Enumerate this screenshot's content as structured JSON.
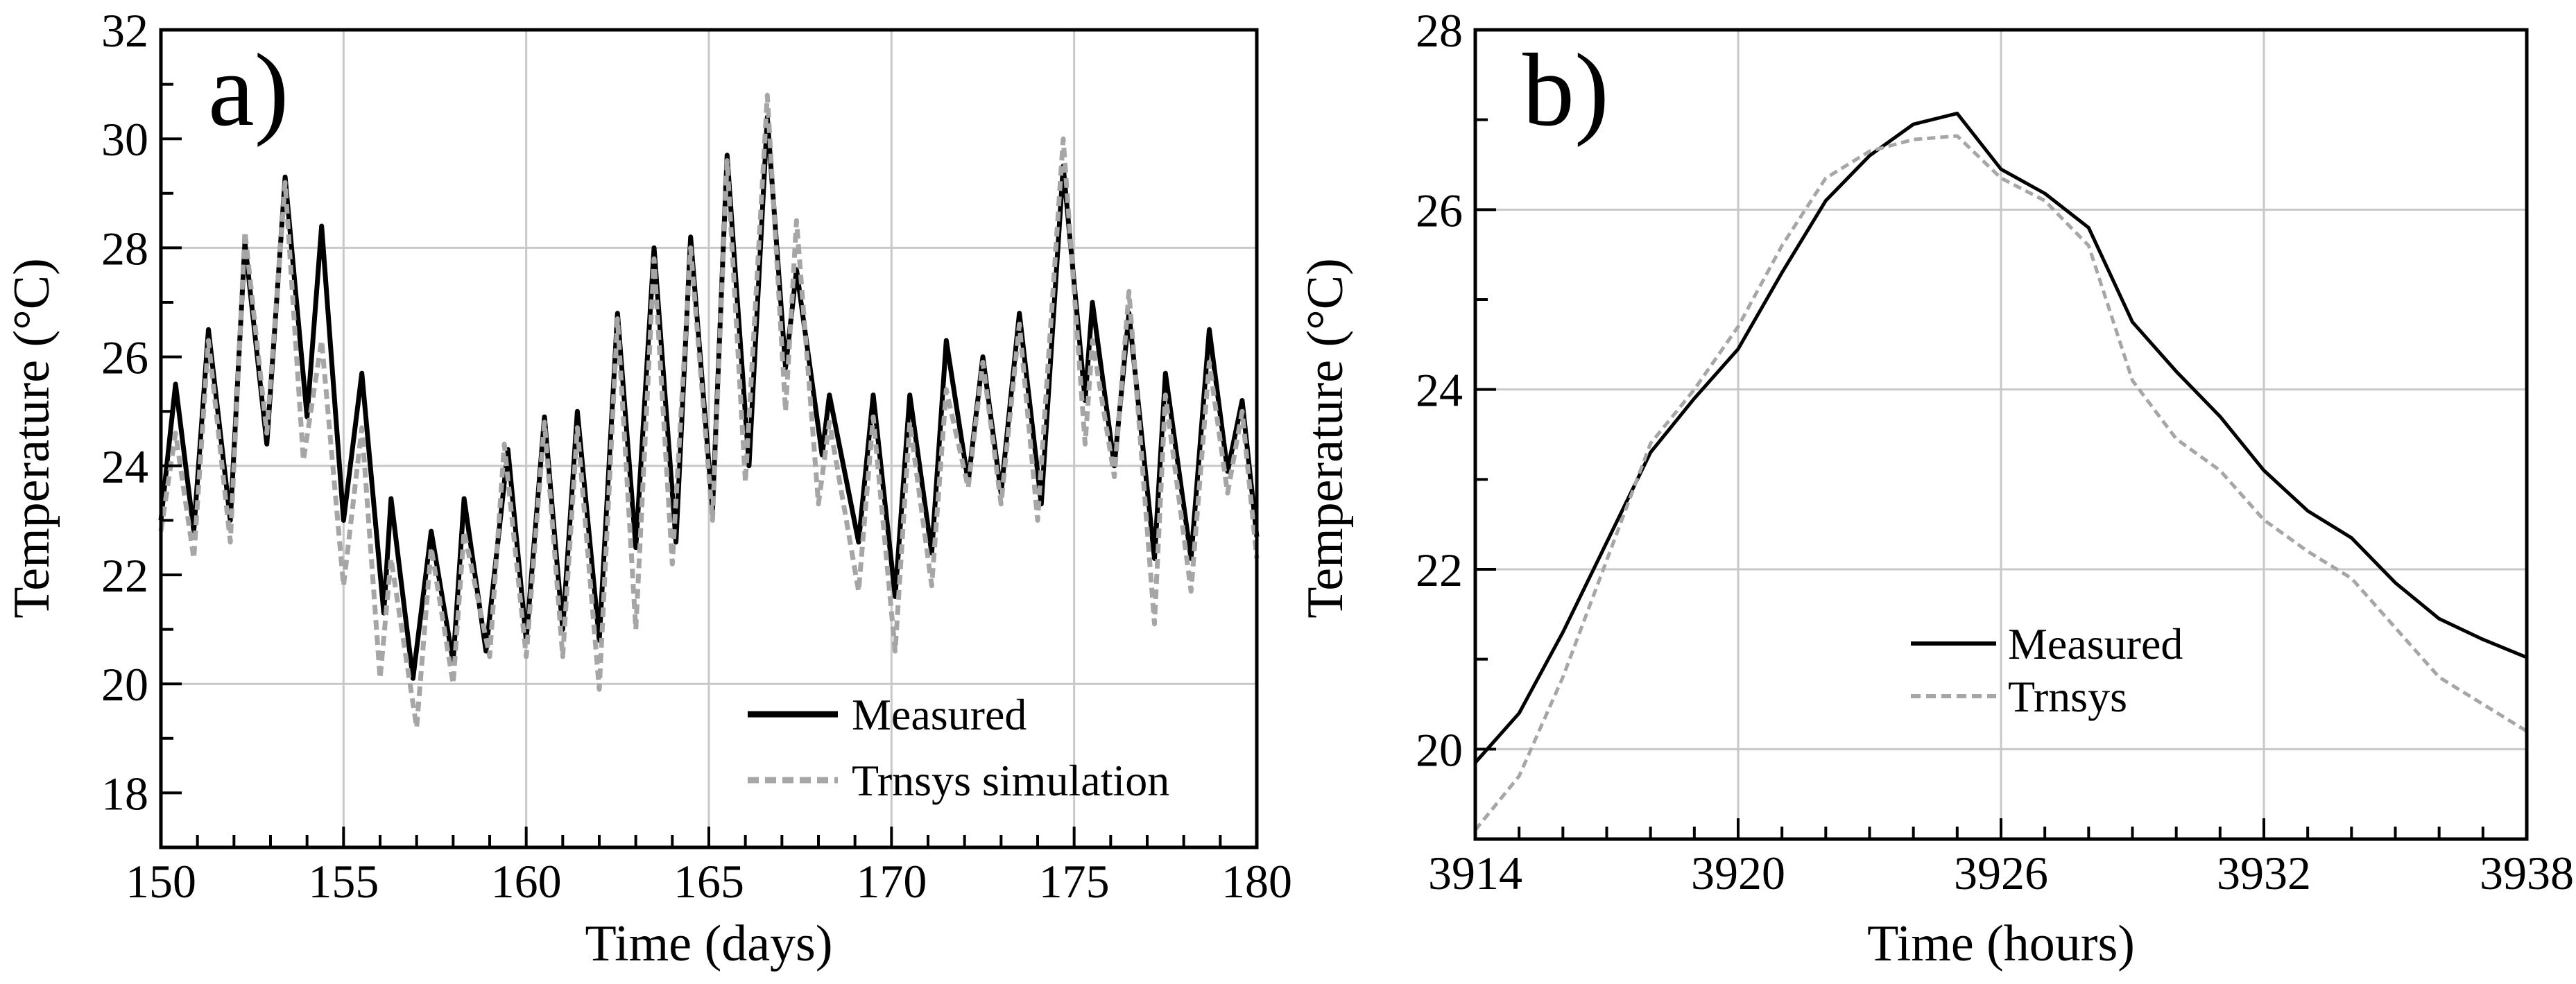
{
  "chart_data": [
    {
      "type": "line",
      "panel_label": "a)",
      "xlabel": "Time (days)",
      "ylabel": "Temperature (°C)",
      "xlim": [
        150,
        180
      ],
      "ylim": [
        17,
        32
      ],
      "xticks": [
        150,
        155,
        160,
        165,
        170,
        175,
        180
      ],
      "yticks": [
        18,
        20,
        22,
        24,
        26,
        28,
        30,
        32
      ],
      "grid": true,
      "legend_position": "bottom-right",
      "series": [
        {
          "name": "Measured",
          "color": "#000000",
          "style": "solid",
          "x": [
            150,
            150.4,
            150.9,
            151.3,
            151.9,
            152.3,
            152.9,
            153.4,
            154.0,
            154.4,
            155.0,
            155.5,
            156.1,
            156.3,
            156.9,
            157.4,
            158.0,
            158.3,
            158.9,
            159.5,
            160.0,
            160.5,
            161.0,
            161.4,
            162.0,
            162.5,
            163.0,
            163.5,
            164.1,
            164.5,
            165.1,
            165.5,
            166.1,
            166.6,
            167.1,
            167.4,
            168.1,
            168.3,
            169.1,
            169.5,
            170.1,
            170.5,
            171.1,
            171.5,
            172.1,
            172.5,
            173.0,
            173.5,
            174.1,
            174.7,
            175.3,
            175.5,
            176.1,
            176.5,
            177.2,
            177.5,
            178.2,
            178.7,
            179.2,
            179.6,
            180
          ],
          "y": [
            23.0,
            25.5,
            22.8,
            26.5,
            23.0,
            28.1,
            24.4,
            29.3,
            24.9,
            28.4,
            23.0,
            25.7,
            21.3,
            23.4,
            20.1,
            22.8,
            20.4,
            23.4,
            20.6,
            24.3,
            20.8,
            24.9,
            21.0,
            25.0,
            20.8,
            26.8,
            22.5,
            28.0,
            22.6,
            28.2,
            23.2,
            29.7,
            24.0,
            30.4,
            25.8,
            27.6,
            24.2,
            25.3,
            22.6,
            25.3,
            21.6,
            25.3,
            22.4,
            26.3,
            23.7,
            26.0,
            23.5,
            26.8,
            23.3,
            29.5,
            25.2,
            27.0,
            24.0,
            26.8,
            22.3,
            25.7,
            22.3,
            26.5,
            23.9,
            25.2,
            22.7
          ]
        },
        {
          "name": "Trnsys simulation",
          "color": "#a6a6a6",
          "style": "dashed",
          "x": [
            150,
            150.4,
            150.9,
            151.3,
            151.9,
            152.3,
            152.9,
            153.4,
            153.9,
            154.4,
            155.0,
            155.5,
            156.0,
            156.3,
            157.0,
            157.4,
            158.0,
            158.3,
            159.0,
            159.4,
            160.0,
            160.5,
            161.0,
            161.4,
            162.0,
            162.5,
            163.0,
            163.5,
            164.0,
            164.5,
            165.1,
            165.5,
            166.0,
            166.6,
            167.1,
            167.4,
            168.0,
            168.3,
            169.1,
            169.5,
            170.1,
            170.5,
            171.1,
            171.5,
            172.1,
            172.5,
            173.0,
            173.5,
            174.0,
            174.7,
            175.3,
            175.5,
            176.1,
            176.5,
            177.2,
            177.5,
            178.2,
            178.7,
            179.2,
            179.6,
            180
          ],
          "y": [
            22.8,
            24.6,
            22.3,
            26.3,
            22.6,
            28.3,
            24.6,
            29.2,
            24.1,
            26.3,
            21.8,
            24.7,
            20.1,
            22.3,
            19.2,
            22.5,
            20.0,
            22.8,
            20.5,
            24.4,
            20.5,
            24.8,
            20.5,
            24.7,
            19.9,
            26.7,
            21.0,
            27.8,
            22.2,
            28.0,
            23.0,
            29.6,
            23.7,
            30.8,
            25.0,
            28.5,
            23.3,
            24.8,
            21.7,
            24.9,
            20.6,
            24.8,
            21.8,
            25.4,
            23.6,
            25.9,
            23.3,
            26.6,
            23.0,
            30.0,
            24.4,
            26.3,
            23.8,
            27.2,
            21.1,
            25.3,
            21.7,
            25.9,
            23.5,
            25.0,
            22.3
          ]
        }
      ]
    },
    {
      "type": "line",
      "panel_label": "b)",
      "xlabel": "Time (hours)",
      "ylabel": "Temperature (°C)",
      "xlim": [
        3914,
        3938
      ],
      "ylim": [
        19,
        28
      ],
      "xticks": [
        3914,
        3920,
        3926,
        3932,
        3938
      ],
      "yticks": [
        20,
        22,
        24,
        26,
        28
      ],
      "grid": true,
      "legend_position": "center-right",
      "series": [
        {
          "name": "Measured",
          "color": "#000000",
          "style": "solid",
          "x": [
            3914,
            3915,
            3916,
            3917,
            3918,
            3919,
            3920,
            3921,
            3922,
            3923,
            3924,
            3925,
            3926,
            3927,
            3928,
            3929,
            3930,
            3931,
            3932,
            3933,
            3934,
            3935,
            3936,
            3937,
            3938
          ],
          "y": [
            19.85,
            20.4,
            21.3,
            22.3,
            23.3,
            23.9,
            24.45,
            25.3,
            26.1,
            26.6,
            26.95,
            27.07,
            26.45,
            26.18,
            25.8,
            24.75,
            24.2,
            23.7,
            23.1,
            22.65,
            22.35,
            21.85,
            21.45,
            21.22,
            21.02
          ]
        },
        {
          "name": "Trnsys",
          "color": "#a6a6a6",
          "style": "dashed",
          "x": [
            3914,
            3915,
            3916,
            3917,
            3918,
            3919,
            3920,
            3921,
            3922,
            3923,
            3924,
            3925,
            3926,
            3927,
            3928,
            3929,
            3930,
            3931,
            3932,
            3933,
            3934,
            3935,
            3936,
            3937,
            3938
          ],
          "y": [
            19.1,
            19.7,
            20.8,
            22.1,
            23.4,
            24.0,
            24.7,
            25.6,
            26.35,
            26.65,
            26.78,
            26.82,
            26.35,
            26.1,
            25.6,
            24.1,
            23.45,
            23.1,
            22.55,
            22.2,
            21.9,
            21.35,
            20.8,
            20.5,
            20.2
          ]
        }
      ]
    }
  ]
}
